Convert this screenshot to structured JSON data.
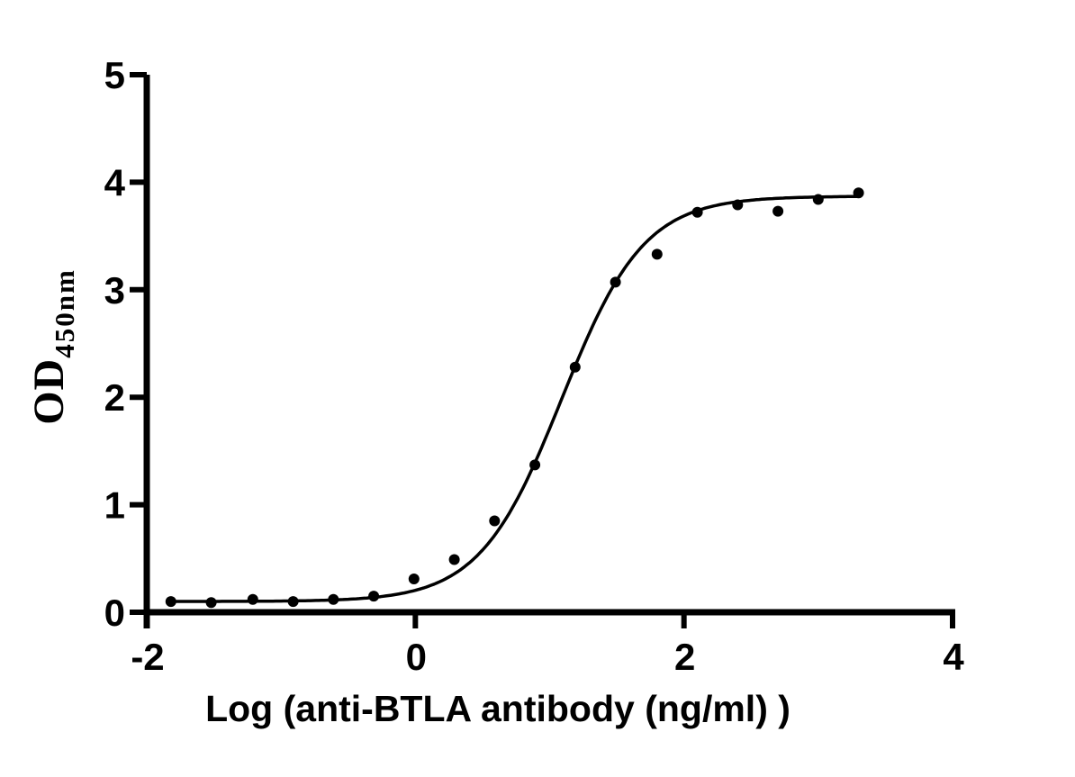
{
  "figure": {
    "background_color": "#ffffff",
    "ink_color": "#000000"
  },
  "chart_data": {
    "type": "scatter",
    "title": "",
    "xlabel": "Log (anti-BTLA antibody (ng/ml) )",
    "ylabel": "OD",
    "ylabel_subscript": "450nm",
    "xlim": [
      -2,
      4
    ],
    "ylim": [
      0,
      5
    ],
    "x_ticks": [
      -2,
      0,
      2,
      4
    ],
    "y_ticks": [
      0,
      1,
      2,
      3,
      4,
      5
    ],
    "grid": false,
    "legend": "none",
    "marker": "filled-circle",
    "marker_color": "#000000",
    "line_color": "#000000",
    "points": [
      {
        "x": -1.82,
        "y": 0.1
      },
      {
        "x": -1.52,
        "y": 0.09
      },
      {
        "x": -1.21,
        "y": 0.12
      },
      {
        "x": -0.91,
        "y": 0.1
      },
      {
        "x": -0.61,
        "y": 0.12
      },
      {
        "x": -0.31,
        "y": 0.15
      },
      {
        "x": -0.01,
        "y": 0.31
      },
      {
        "x": 0.29,
        "y": 0.49
      },
      {
        "x": 0.59,
        "y": 0.85
      },
      {
        "x": 0.89,
        "y": 1.37
      },
      {
        "x": 1.19,
        "y": 2.28
      },
      {
        "x": 1.49,
        "y": 3.07
      },
      {
        "x": 1.8,
        "y": 3.33
      },
      {
        "x": 2.1,
        "y": 3.72
      },
      {
        "x": 2.4,
        "y": 3.79
      },
      {
        "x": 2.7,
        "y": 3.73
      },
      {
        "x": 3.0,
        "y": 3.84
      },
      {
        "x": 3.3,
        "y": 3.9
      }
    ],
    "fit_curve": {
      "model": "4PL-sigmoid",
      "bottom": 0.1,
      "top": 3.87,
      "logEC50": 1.09,
      "hillslope": 1.42,
      "x_start": -1.82,
      "x_end": 3.3
    }
  }
}
